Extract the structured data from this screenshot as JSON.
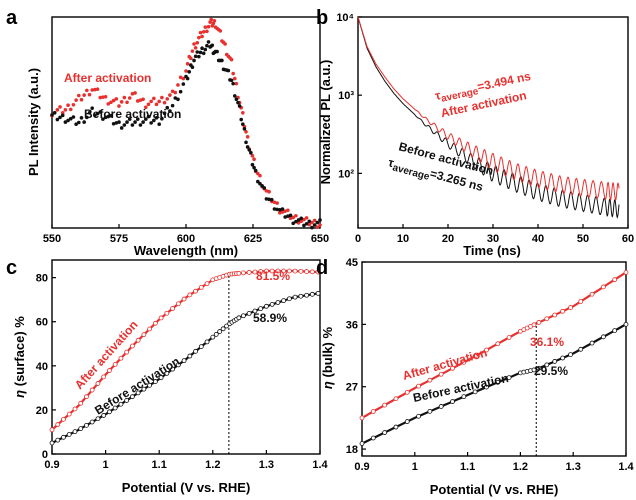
{
  "colors": {
    "after": "#e8312f",
    "before": "#111111"
  },
  "chart_data": [
    {
      "panel": "a",
      "type": "scatter",
      "xlabel": "Wavelength (nm)",
      "ylabel": "PL Intensity (a.u.)",
      "xlim": [
        550,
        650
      ],
      "ylim": [
        0,
        1
      ],
      "xticks": [
        550,
        575,
        600,
        625,
        650
      ],
      "yticks": [],
      "series": [
        {
          "name": "After activation",
          "color": "#e8312f",
          "x": [
            550,
            555,
            560,
            565,
            570,
            575,
            580,
            585,
            590,
            595,
            600,
            603,
            606,
            609,
            611,
            614,
            617,
            620,
            623,
            626,
            630,
            635,
            640,
            645,
            650
          ],
          "y": [
            0.55,
            0.56,
            0.61,
            0.66,
            0.61,
            0.59,
            0.63,
            0.59,
            0.6,
            0.63,
            0.75,
            0.86,
            0.92,
            0.97,
            0.97,
            0.88,
            0.78,
            0.6,
            0.42,
            0.28,
            0.17,
            0.09,
            0.05,
            0.03,
            0.02
          ]
        },
        {
          "name": "Before activation",
          "color": "#111111",
          "x": [
            550,
            555,
            560,
            565,
            570,
            575,
            580,
            585,
            590,
            595,
            600,
            603,
            606,
            609,
            611,
            614,
            617,
            620,
            623,
            626,
            630,
            635,
            640,
            645,
            650
          ],
          "y": [
            0.53,
            0.52,
            0.5,
            0.55,
            0.53,
            0.49,
            0.5,
            0.51,
            0.51,
            0.58,
            0.7,
            0.8,
            0.84,
            0.87,
            0.83,
            0.77,
            0.7,
            0.56,
            0.39,
            0.26,
            0.15,
            0.08,
            0.04,
            0.02,
            0.02
          ]
        }
      ],
      "annotations": [
        "After activation",
        "Before activation"
      ]
    },
    {
      "panel": "b",
      "type": "line",
      "xlabel": "Time (ns)",
      "ylabel": "Normalized PL (a.u.)",
      "xlim": [
        0,
        60
      ],
      "ylim": [
        20,
        10000
      ],
      "yscale": "log",
      "xticks": [
        0,
        10,
        20,
        30,
        40,
        50,
        60
      ],
      "yticks": [
        100,
        1000,
        10000
      ],
      "ytick_labels": [
        "10²",
        "10³",
        "10⁴"
      ],
      "series": [
        {
          "name": "After activation",
          "color": "#e8312f",
          "x": [
            0,
            2,
            4,
            6,
            8,
            10,
            15,
            20,
            25,
            30,
            35,
            40,
            45,
            50,
            55,
            58
          ],
          "y": [
            10000,
            4200,
            2500,
            1700,
            1200,
            900,
            500,
            300,
            200,
            140,
            105,
            85,
            72,
            65,
            60,
            58
          ]
        },
        {
          "name": "Before activation",
          "color": "#111111",
          "x": [
            0,
            2,
            4,
            6,
            8,
            10,
            15,
            20,
            25,
            30,
            35,
            40,
            45,
            50,
            55,
            58
          ],
          "y": [
            10000,
            4000,
            2300,
            1500,
            1050,
            780,
            420,
            240,
            150,
            100,
            75,
            58,
            48,
            42,
            37,
            35
          ]
        }
      ],
      "annotations": {
        "after_label": "After activation",
        "after_tau_prefix": "τ",
        "after_tau_sub": "average",
        "after_tau_value": "=3.494 ns",
        "before_label": "Before activation",
        "before_tau_prefix": "τ",
        "before_tau_sub": "average",
        "before_tau_value": "=3.265 ns"
      }
    },
    {
      "panel": "c",
      "type": "line",
      "xlabel": "Potential (V vs. RHE)",
      "ylabel_symbol": "η",
      "ylabel_rest": " (surface) %",
      "xlim": [
        0.9,
        1.4
      ],
      "ylim": [
        0,
        88
      ],
      "xticks": [
        0.9,
        1.0,
        1.1,
        1.2,
        1.3,
        1.4
      ],
      "yticks": [
        0,
        20,
        40,
        60,
        80
      ],
      "marker_x": 1.23,
      "series": [
        {
          "name": "After activation",
          "color": "#e8312f",
          "x": [
            0.9,
            0.95,
            1.0,
            1.05,
            1.1,
            1.15,
            1.2,
            1.23,
            1.25,
            1.3,
            1.35,
            1.4
          ],
          "y": [
            11,
            22,
            36,
            49,
            61,
            71,
            79,
            81.5,
            82,
            83,
            83,
            82.5
          ]
        },
        {
          "name": "Before activation",
          "color": "#111111",
          "x": [
            0.9,
            0.95,
            1.0,
            1.05,
            1.1,
            1.15,
            1.2,
            1.23,
            1.25,
            1.3,
            1.35,
            1.4
          ],
          "y": [
            5,
            11,
            18,
            26,
            34,
            43,
            53,
            58.9,
            62,
            67,
            71,
            73
          ]
        }
      ],
      "annotations": {
        "after_value": "81.5%",
        "before_value": "58.9%",
        "after_label": "After activation",
        "before_label": "Before activation"
      }
    },
    {
      "panel": "d",
      "type": "line",
      "xlabel": "Potential (V vs. RHE)",
      "ylabel_symbol": "η",
      "ylabel_rest": " (bulk) %",
      "xlim": [
        0.9,
        1.4
      ],
      "ylim": [
        17,
        45
      ],
      "xticks": [
        0.9,
        1.0,
        1.1,
        1.2,
        1.3,
        1.4
      ],
      "yticks": [
        18,
        27,
        36,
        45
      ],
      "marker_x": 1.23,
      "series": [
        {
          "name": "After activation",
          "color": "#e8312f",
          "x": [
            0.9,
            1.0,
            1.1,
            1.2,
            1.23,
            1.3,
            1.4
          ],
          "y": [
            22.5,
            26.8,
            30.8,
            35,
            36.1,
            38.6,
            43.5
          ]
        },
        {
          "name": "Before activation",
          "color": "#111111",
          "x": [
            0.9,
            1.0,
            1.1,
            1.2,
            1.23,
            1.3,
            1.4
          ],
          "y": [
            18.8,
            22.5,
            25.8,
            29,
            29.5,
            31.8,
            36
          ]
        }
      ],
      "annotations": {
        "after_value": "36.1%",
        "before_value": "29.5%",
        "after_label": "After activation",
        "before_label": "Before activation"
      }
    }
  ]
}
